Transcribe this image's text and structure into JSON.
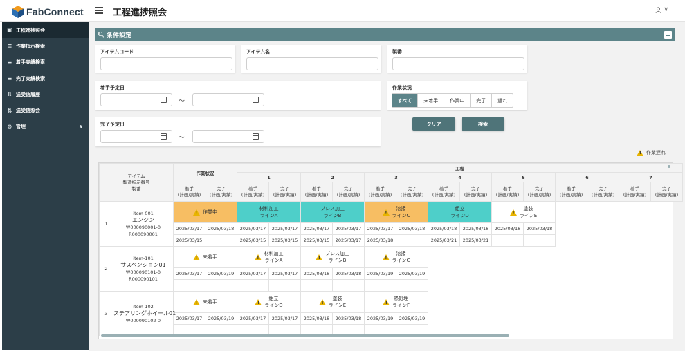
{
  "app": {
    "logo_text": "FabConnect",
    "page_title": "工程進捗照会",
    "user_caret": "∨"
  },
  "sidebar": {
    "items": [
      {
        "label": "工程進捗照会",
        "icon": "monitor-icon",
        "glyph": "▣",
        "active": true
      },
      {
        "label": "作業指示検索",
        "icon": "list-search-icon",
        "glyph": "≡",
        "active": false
      },
      {
        "label": "着手実績検索",
        "icon": "list-search-icon",
        "glyph": "≡",
        "active": false
      },
      {
        "label": "完了実績検索",
        "icon": "list-search-icon",
        "glyph": "≡",
        "active": false
      },
      {
        "label": "送受信履歴",
        "icon": "transfer-icon",
        "glyph": "⇅",
        "active": false
      },
      {
        "label": "送受信照会",
        "icon": "transfer-icon",
        "glyph": "⇅",
        "active": false
      },
      {
        "label": "管理",
        "icon": "gear-icon",
        "glyph": "⚙",
        "active": false
      }
    ]
  },
  "conditions": {
    "header": "条件設定",
    "item_code_label": "アイテムコード",
    "item_name_label": "アイテム名",
    "product_label": "製番",
    "start_date_label": "着手予定日",
    "end_date_label": "完了予定日",
    "tilde": "～",
    "status_label": "作業状況",
    "status_options": [
      "すべて",
      "未着手",
      "作業中",
      "完了",
      "遅れ"
    ],
    "status_selected": "すべて",
    "clear_button": "クリア",
    "search_button": "検索"
  },
  "legend": {
    "label": "作業遅れ"
  },
  "grid": {
    "header": {
      "item_lines": [
        "アイテム",
        "製造指示番号",
        "製番"
      ],
      "status": "作業状況",
      "process_group": "工程",
      "process_numbers": [
        "1",
        "2",
        "3",
        "4",
        "5",
        "6",
        "7"
      ],
      "start": [
        "着手",
        "(計画/実績)"
      ],
      "end": [
        "完了",
        "(計画/実績)"
      ]
    },
    "rows": [
      {
        "no": "1",
        "item_code": "item-001",
        "item_name": "エンジン",
        "order_no": "W000090001-0",
        "prod_no": "R000090001",
        "status": {
          "label": "作業中",
          "color": "orange",
          "warn": true
        },
        "status_dates": [
          "2025/03/17",
          "2025/03/18",
          "2025/03/15",
          ""
        ],
        "processes": [
          {
            "line1": "材料加工",
            "line2": "ラインA",
            "color": "teal",
            "warn": false,
            "dates": [
              "2025/03/17",
              "2025/03/17",
              "2025/03/15",
              "2025/03/15"
            ]
          },
          {
            "line1": "プレス加工",
            "line2": "ラインB",
            "color": "teal",
            "warn": false,
            "dates": [
              "2025/03/17",
              "2025/03/17",
              "2025/03/15",
              "2025/03/17"
            ]
          },
          {
            "line1": "溶接",
            "line2": "ラインC",
            "color": "orange",
            "warn": true,
            "dates": [
              "2025/03/17",
              "2025/03/18",
              "2025/03/18",
              ""
            ]
          },
          {
            "line1": "組立",
            "line2": "ラインD",
            "color": "teal",
            "warn": false,
            "dates": [
              "2025/03/18",
              "2025/03/18",
              "2025/03/21",
              "2025/03/21"
            ]
          },
          {
            "line1": "塗装",
            "line2": "ラインE",
            "color": "none",
            "warn": true,
            "dates": [
              "2025/03/18",
              "2025/03/18",
              "",
              ""
            ]
          }
        ]
      },
      {
        "no": "2",
        "item_code": "item-101",
        "item_name": "サスペンション01",
        "order_no": "W000090101-0",
        "prod_no": "R000090101",
        "status": {
          "label": "未着手",
          "color": "none",
          "warn": true
        },
        "status_dates": [
          "2025/03/17",
          "2025/03/19",
          "",
          ""
        ],
        "processes": [
          {
            "line1": "材料加工",
            "line2": "ラインA",
            "color": "none",
            "warn": true,
            "dates": [
              "2025/03/17",
              "2025/03/17",
              "",
              ""
            ]
          },
          {
            "line1": "プレス加工",
            "line2": "ラインB",
            "color": "none",
            "warn": true,
            "dates": [
              "2025/03/18",
              "2025/03/18",
              "",
              ""
            ]
          },
          {
            "line1": "溶接",
            "line2": "ラインC",
            "color": "none",
            "warn": true,
            "dates": [
              "2025/03/19",
              "2025/03/19",
              "",
              ""
            ]
          }
        ]
      },
      {
        "no": "3",
        "item_code": "item-102",
        "item_name": "ステアリングホイール01",
        "order_no": "W000090102-0",
        "prod_no": "",
        "status": {
          "label": "未着手",
          "color": "none",
          "warn": true
        },
        "status_dates": [
          "2025/03/17",
          "2025/03/19",
          "",
          ""
        ],
        "processes": [
          {
            "line1": "組立",
            "line2": "ラインD",
            "color": "none",
            "warn": true,
            "dates": [
              "2025/03/17",
              "2025/03/17",
              "",
              ""
            ]
          },
          {
            "line1": "塗装",
            "line2": "ラインE",
            "color": "none",
            "warn": true,
            "dates": [
              "2025/03/18",
              "2025/03/18",
              "",
              ""
            ]
          },
          {
            "line1": "熱処理",
            "line2": "ラインF",
            "color": "none",
            "warn": true,
            "dates": [
              "2025/03/19",
              "2025/03/19",
              "",
              ""
            ]
          }
        ]
      }
    ]
  },
  "colors": {
    "sidebar_bg": "#2c3e48",
    "accent": "#5c8489",
    "orange": "#f7be63",
    "teal": "#4ecfc9",
    "warning": "#e8b400"
  }
}
